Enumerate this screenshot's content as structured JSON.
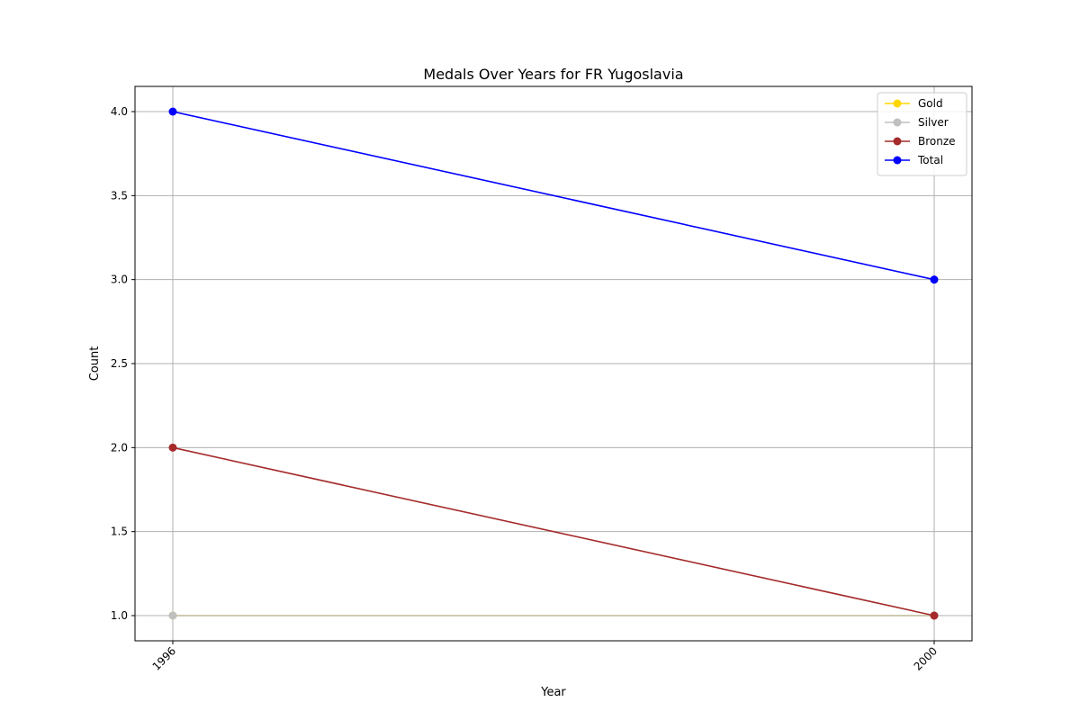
{
  "chart_data": {
    "type": "line",
    "title": "Medals Over Years for FR Yugoslavia",
    "xlabel": "Year",
    "ylabel": "Count",
    "x": [
      "1996",
      "2000"
    ],
    "ylim": [
      0.85,
      4.15
    ],
    "yticks": [
      "1.0",
      "1.5",
      "2.0",
      "2.5",
      "3.0",
      "3.5",
      "4.0"
    ],
    "grid": true,
    "legend_position": "top-right",
    "series": [
      {
        "name": "Gold",
        "color": "#FFD700",
        "values": [
          1,
          1
        ]
      },
      {
        "name": "Silver",
        "color": "#C0C0C0",
        "values": [
          1,
          1
        ]
      },
      {
        "name": "Bronze",
        "color": "#A52A2A",
        "values": [
          2,
          1
        ]
      },
      {
        "name": "Total",
        "color": "#0000FF",
        "values": [
          4,
          3
        ]
      }
    ]
  }
}
